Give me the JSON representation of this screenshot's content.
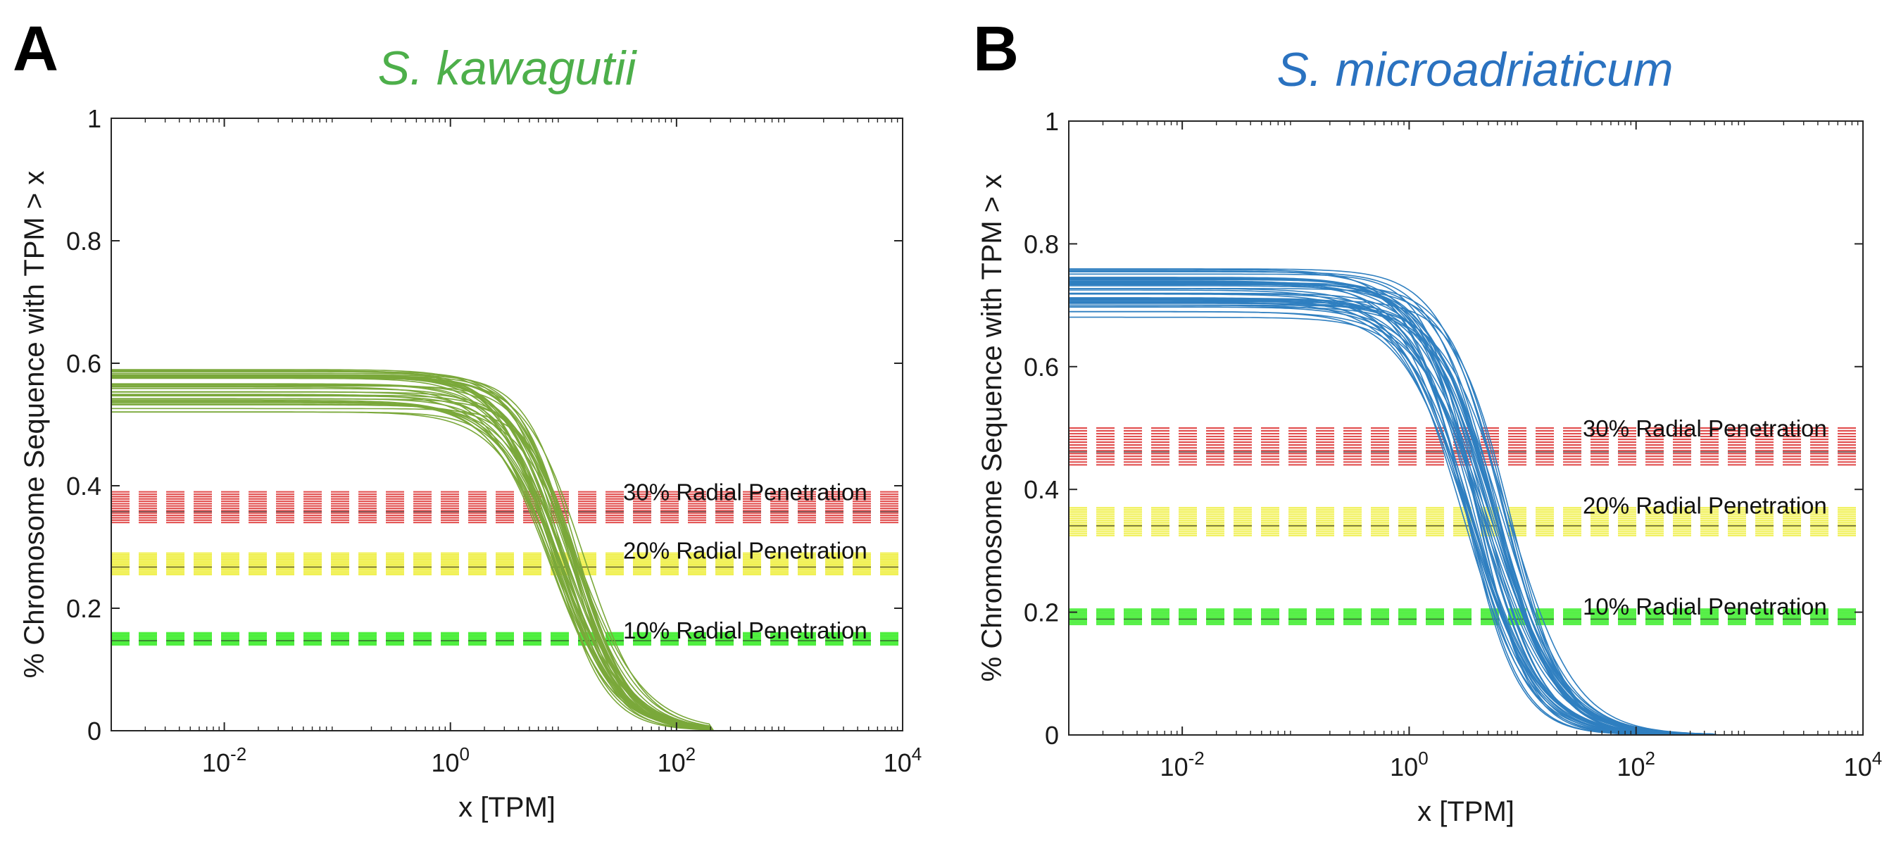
{
  "figure": {
    "panels": [
      "A",
      "B"
    ]
  },
  "chart_data": [
    {
      "type": "line",
      "panel": "A",
      "title": "S. kawagutii",
      "title_color": "#4daf4a",
      "line_color": "#7aa83a",
      "xlabel": "x [TPM]",
      "ylabel": "% Chromosome Sequence with TPM > x",
      "xscale": "log",
      "xlim": [
        0.001,
        10000
      ],
      "ylim": [
        0,
        1
      ],
      "xticks": [
        {
          "base": "10",
          "exp": "-2",
          "value": 0.01
        },
        {
          "base": "10",
          "exp": "0",
          "value": 1
        },
        {
          "base": "10",
          "exp": "2",
          "value": 100
        },
        {
          "base": "10",
          "exp": "4",
          "value": 10000
        }
      ],
      "yticks": [
        {
          "label": "0",
          "value": 0
        },
        {
          "label": "0.2",
          "value": 0.2
        },
        {
          "label": "0.4",
          "value": 0.4
        },
        {
          "label": "0.6",
          "value": 0.6
        },
        {
          "label": "0.8",
          "value": 0.8
        },
        {
          "label": "1",
          "value": 1
        }
      ],
      "curve_family": {
        "count": 40,
        "plateau_range": [
          0.52,
          0.59
        ],
        "midpoint_range_tpm": [
          7,
          15
        ],
        "falloff_width_decades": [
          0.22,
          0.3
        ],
        "reaches_zero_near_tpm": 200
      },
      "bands": [
        {
          "label": "30% Radial Penetration",
          "color": "#dd3333",
          "y_range": [
            0.34,
            0.39
          ]
        },
        {
          "label": "20% Radial Penetration",
          "color": "#eeee33",
          "y_range": [
            0.255,
            0.29
          ]
        },
        {
          "label": "10% Radial Penetration",
          "color": "#44ee33",
          "y_range": [
            0.14,
            0.16
          ]
        }
      ]
    },
    {
      "type": "line",
      "panel": "B",
      "title": "S. microadriaticum",
      "title_color": "#2a72c0",
      "line_color": "#2f7fc0",
      "xlabel": "x [TPM]",
      "ylabel": "% Chromosome Sequence with TPM > x",
      "xscale": "log",
      "xlim": [
        0.001,
        10000
      ],
      "ylim": [
        0,
        1
      ],
      "xticks": [
        {
          "base": "10",
          "exp": "-2",
          "value": 0.01
        },
        {
          "base": "10",
          "exp": "0",
          "value": 1
        },
        {
          "base": "10",
          "exp": "2",
          "value": 100
        },
        {
          "base": "10",
          "exp": "4",
          "value": 10000
        }
      ],
      "yticks": [
        {
          "label": "0",
          "value": 0
        },
        {
          "label": "0.2",
          "value": 0.2
        },
        {
          "label": "0.4",
          "value": 0.4
        },
        {
          "label": "0.6",
          "value": 0.6
        },
        {
          "label": "0.8",
          "value": 0.8
        },
        {
          "label": "1",
          "value": 1
        }
      ],
      "curve_family": {
        "count": 42,
        "plateau_range": [
          0.68,
          0.76
        ],
        "midpoint_range_tpm": [
          3,
          8
        ],
        "falloff_width_decades": [
          0.22,
          0.32
        ],
        "reaches_zero_near_tpm": 500
      },
      "bands": [
        {
          "label": "30% Radial Penetration",
          "color": "#dd3333",
          "y_range": [
            0.44,
            0.5
          ]
        },
        {
          "label": "20% Radial Penetration",
          "color": "#eeee33",
          "y_range": [
            0.325,
            0.37
          ]
        },
        {
          "label": "10% Radial Penetration",
          "color": "#44ee33",
          "y_range": [
            0.18,
            0.205
          ]
        }
      ]
    }
  ]
}
